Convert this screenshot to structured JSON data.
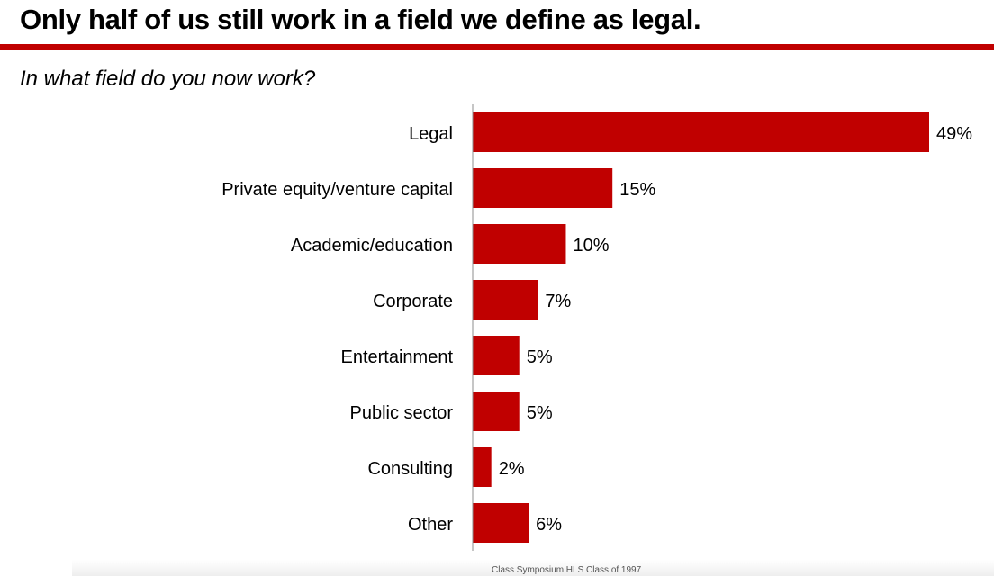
{
  "title": "Only half of us still work in a field we define as legal.",
  "subtitle": "In what field do you now work?",
  "footer": "Class Symposium HLS Class of 1997",
  "colors": {
    "bar": "#c00000",
    "rule": "#c00000",
    "axis": "#8c8c8c"
  },
  "chart_data": {
    "type": "bar",
    "orientation": "horizontal",
    "categories": [
      "Legal",
      "Private equity/venture capital",
      "Academic/education",
      "Corporate",
      "Entertainment",
      "Public sector",
      "Consulting",
      "Other"
    ],
    "values": [
      49,
      15,
      10,
      7,
      5,
      5,
      2,
      6
    ],
    "labels": [
      "49%",
      "15%",
      "10%",
      "7%",
      "5%",
      "5%",
      "2%",
      "6%"
    ],
    "unit": "%",
    "xlim": [
      0,
      49
    ],
    "grid": false,
    "legend": "none"
  }
}
